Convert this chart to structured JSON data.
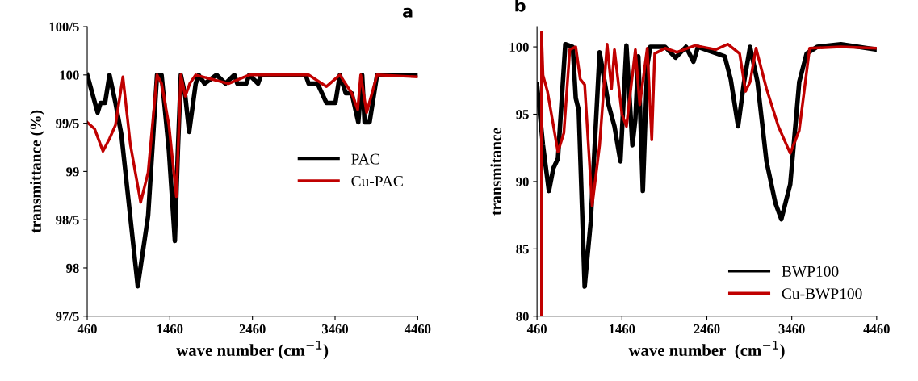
{
  "chart_data": [
    {
      "type": "line",
      "xlabel": "wave number (cm$^{−1}$)",
      "ylabel": "transmittance (%)",
      "annotations": [
        "a"
      ],
      "xlim": [
        460,
        4460
      ],
      "xticks": [
        460,
        1460,
        2460,
        3460,
        4460
      ],
      "ylim": [
        97.5,
        100.5
      ],
      "yticks": [
        {
          "value": 97.5,
          "label": "97/5"
        },
        98,
        {
          "value": 98.5,
          "label": "98/5"
        },
        99,
        {
          "value": 99.5,
          "label": "99/5"
        },
        100,
        {
          "value": 100.5,
          "label": "100/5"
        }
      ],
      "grid": false,
      "legend": "right",
      "marker": "none",
      "line_style": "solid",
      "series": [
        {
          "name": "PAC",
          "color": "#000000",
          "x": [
            460,
            586,
            622,
            676,
            730,
            802,
            874,
            1072,
            1197,
            1305,
            1360,
            1449,
            1521,
            1557,
            1593,
            1647,
            1694,
            1773,
            1809,
            1881,
            2025,
            2133,
            2241,
            2277,
            2385,
            2421,
            2528,
            2565,
            3104,
            3140,
            3248,
            3356,
            3464,
            3518,
            3590,
            3662,
            3741,
            3788,
            3817,
            3878,
            3968,
            4460
          ],
          "values": [
            100,
            99.61,
            99.71,
            99.71,
            100,
            99.71,
            99.38,
            97.81,
            98.54,
            100,
            100,
            99.21,
            98.28,
            99.21,
            100,
            99.78,
            99.41,
            99.91,
            100,
            99.91,
            100,
            99.91,
            100,
            99.91,
            99.91,
            100,
            99.91,
            100,
            100,
            99.91,
            99.91,
            99.71,
            99.71,
            100,
            99.81,
            99.81,
            99.51,
            100,
            99.51,
            99.51,
            100,
            100
          ]
        },
        {
          "name": "Cu-PAC",
          "color": "#c00000",
          "x": [
            460,
            550,
            651,
            730,
            802,
            892,
            982,
            1107,
            1197,
            1305,
            1360,
            1449,
            1539,
            1593,
            1647,
            1701,
            1773,
            2169,
            2421,
            3140,
            3356,
            3518,
            3662,
            3734,
            3770,
            3842,
            3968,
            4460
          ],
          "values": [
            99.51,
            99.44,
            99.21,
            99.34,
            99.48,
            99.98,
            99.28,
            98.68,
            98.99,
            100,
            99.91,
            99.48,
            98.74,
            100,
            99.78,
            99.91,
            100,
            99.91,
            100,
            100,
            99.88,
            100,
            99.81,
            99.64,
            100,
            99.61,
            100,
            99.98
          ]
        }
      ]
    },
    {
      "type": "line",
      "xlabel": "wave number  (cm$^{−1}$)",
      "ylabel": "transmitance",
      "annotations": [
        "b"
      ],
      "xlim": [
        460,
        4460
      ],
      "xticks": [
        460,
        1460,
        2460,
        3460,
        4460
      ],
      "ylim": [
        80,
        101.5
      ],
      "yticks": [
        80,
        85,
        90,
        95,
        100
      ],
      "grid": false,
      "legend": "bottom right",
      "marker": "none",
      "line_style": "solid",
      "series": [
        {
          "name": "BWP100",
          "color": "#000000",
          "x": [
            460,
            530,
            600,
            653,
            706,
            793,
            881,
            916,
            951,
            1021,
            1092,
            1197,
            1302,
            1372,
            1442,
            1513,
            1583,
            1618,
            1653,
            1706,
            1758,
            1793,
            1969,
            2091,
            2214,
            2302,
            2355,
            2670,
            2741,
            2828,
            2898,
            2969,
            3056,
            3162,
            3267,
            3337,
            3442,
            3548,
            3635,
            3758,
            4039,
            4355,
            4460
          ],
          "values": [
            97.2,
            92.7,
            89.3,
            91.0,
            91.7,
            100.2,
            100,
            96.2,
            95.3,
            82.2,
            87.0,
            99.6,
            95.7,
            94.1,
            91.5,
            100.1,
            92.7,
            94.6,
            99.3,
            89.3,
            98.6,
            100,
            100,
            99.2,
            100,
            98.9,
            100,
            99.3,
            97.6,
            94.1,
            97.4,
            100,
            97.4,
            91.5,
            88.4,
            87.2,
            89.8,
            97.4,
            99.5,
            100,
            100.2,
            99.9,
            99.8
          ]
        },
        {
          "name": "Cu-BWP100",
          "color": "#c00000",
          "x": [
            513,
            513,
            530,
            583,
            635,
            706,
            776,
            846,
            916,
            969,
            1021,
            1109,
            1197,
            1285,
            1337,
            1372,
            1460,
            1513,
            1618,
            1670,
            1758,
            1811,
            1846,
            1969,
            2109,
            2320,
            2565,
            2706,
            2846,
            2916,
            2969,
            3039,
            3162,
            3302,
            3442,
            3548,
            3670,
            4039,
            4460
          ],
          "values": [
            80,
            101.1,
            97.9,
            96.7,
            94.8,
            92.2,
            93.6,
            99.8,
            100,
            97.6,
            97.2,
            88.2,
            92.7,
            100.2,
            96.9,
            99.8,
            95.0,
            94.1,
            99.8,
            95.7,
            99.9,
            93.1,
            99.5,
            99.9,
            99.6,
            100.1,
            99.8,
            100.2,
            99.5,
            96.7,
            97.4,
            99.9,
            96.9,
            94.1,
            92.1,
            93.8,
            99.9,
            100,
            99.9
          ]
        }
      ]
    }
  ]
}
